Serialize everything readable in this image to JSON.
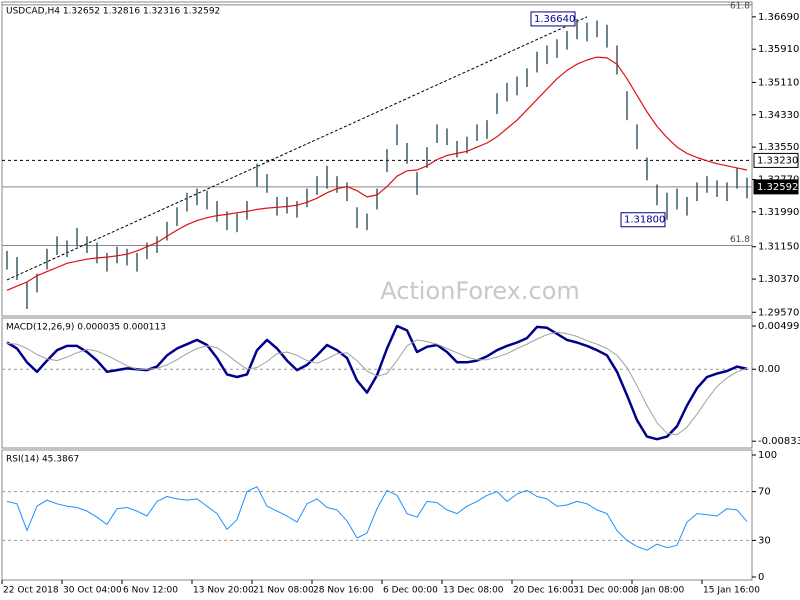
{
  "chart_data": [
    {
      "type": "ohlc",
      "title": "USDCAD,H4  1.32652 1.32816 1.32316 1.32592",
      "watermark": "ActionForex.com",
      "color": "#2f4f5f",
      "high": [
        1.3105,
        1.309,
        1.303,
        1.305,
        1.311,
        1.314,
        1.313,
        1.316,
        1.314,
        1.3125,
        1.31,
        1.3115,
        1.311,
        1.31,
        1.3125,
        1.314,
        1.3175,
        1.321,
        1.3245,
        1.3255,
        1.325,
        1.3225,
        1.32,
        1.3195,
        1.3225,
        1.3315,
        1.329,
        1.3235,
        1.3235,
        1.3225,
        1.3255,
        1.3285,
        1.331,
        1.3285,
        1.327,
        1.321,
        1.3195,
        1.3255,
        1.335,
        1.341,
        1.3365,
        1.3295,
        1.3355,
        1.341,
        1.34,
        1.337,
        1.338,
        1.341,
        1.342,
        1.3485,
        1.351,
        1.3525,
        1.3545,
        1.3585,
        1.36,
        1.3615,
        1.3635,
        1.3664,
        1.3655,
        1.366,
        1.365,
        1.36,
        1.349,
        1.341,
        1.333,
        1.3265,
        1.3245,
        1.3255,
        1.3235,
        1.327,
        1.3285,
        1.3275,
        1.327,
        1.3305,
        1.32816
      ],
      "low": [
        1.306,
        1.3035,
        1.2965,
        1.3005,
        1.306,
        1.3095,
        1.309,
        1.3115,
        1.31,
        1.3075,
        1.3055,
        1.3075,
        1.307,
        1.3055,
        1.3085,
        1.31,
        1.313,
        1.3165,
        1.32,
        1.3215,
        1.3205,
        1.3175,
        1.3155,
        1.315,
        1.318,
        1.326,
        1.3245,
        1.319,
        1.3195,
        1.3185,
        1.321,
        1.324,
        1.3255,
        1.3245,
        1.3225,
        1.316,
        1.3155,
        1.3205,
        1.3295,
        1.336,
        1.3315,
        1.324,
        1.3305,
        1.3365,
        1.336,
        1.333,
        1.334,
        1.337,
        1.3375,
        1.3435,
        1.3465,
        1.348,
        1.35,
        1.3535,
        1.3555,
        1.357,
        1.359,
        1.3615,
        1.361,
        1.362,
        1.3595,
        1.353,
        1.342,
        1.335,
        1.3275,
        1.3215,
        1.318,
        1.3205,
        1.319,
        1.3225,
        1.3245,
        1.3235,
        1.3225,
        1.3255,
        1.32316
      ],
      "series": [
        {
          "color": "#e01010",
          "values": [
            1.301,
            1.302,
            1.303,
            1.3045,
            1.3055,
            1.3065,
            1.3075,
            1.308,
            1.3085,
            1.3088,
            1.309,
            1.3093,
            1.3097,
            1.3105,
            1.3115,
            1.3125,
            1.314,
            1.3155,
            1.3168,
            1.3178,
            1.3185,
            1.319,
            1.3193,
            1.3197,
            1.32,
            1.3205,
            1.3208,
            1.321,
            1.3212,
            1.3215,
            1.3222,
            1.3232,
            1.3245,
            1.3255,
            1.326,
            1.325,
            1.3235,
            1.324,
            1.326,
            1.3285,
            1.3298,
            1.33,
            1.331,
            1.3325,
            1.3335,
            1.334,
            1.3345,
            1.3355,
            1.3365,
            1.338,
            1.34,
            1.342,
            1.3445,
            1.347,
            1.3495,
            1.352,
            1.354,
            1.3555,
            1.3565,
            1.3572,
            1.357,
            1.3555,
            1.352,
            1.348,
            1.344,
            1.3405,
            1.3378,
            1.3355,
            1.334,
            1.333,
            1.3322,
            1.3315,
            1.331,
            1.3305,
            1.33
          ]
        }
      ],
      "trend_line": {
        "x": [
          0,
          58
        ],
        "values": [
          1.3035,
          1.3669
        ],
        "color": "#000000"
      },
      "levels": [
        {
          "value": 1.3323,
          "label": "1.33230",
          "style": "dashed"
        },
        {
          "value": 1.32592,
          "label": "1.32592",
          "style": "solid"
        },
        {
          "value": 1.3118,
          "name": "61.8",
          "style": "solid"
        },
        {
          "value": 1.3698,
          "name": "61.8",
          "style": "solid"
        }
      ],
      "annotations": [
        {
          "text": "1.36640",
          "value": 1.3664,
          "x": 57
        },
        {
          "text": "1.31800",
          "value": 1.318,
          "x": 66
        }
      ],
      "ylim": [
        1.2948,
        1.37
      ],
      "yticks": [
        {
          "value": 1.2957,
          "label": "1.29570"
        },
        {
          "value": 1.3037,
          "label": "1.30370"
        },
        {
          "value": 1.3115,
          "label": "1.31150"
        },
        {
          "value": 1.3199,
          "label": "1.31990"
        },
        {
          "value": 1.3277,
          "label": "1.32770"
        },
        {
          "value": 1.3355,
          "label": "1.33550"
        },
        {
          "value": 1.3433,
          "label": "1.34330"
        },
        {
          "value": 1.3511,
          "label": "1.35110"
        },
        {
          "value": 1.3591,
          "label": "1.35910"
        },
        {
          "value": 1.3669,
          "label": "1.36690"
        }
      ]
    },
    {
      "type": "line",
      "title": "MACD(12,26,9) 0.000035 0.000113",
      "series": [
        {
          "color": "#00008b",
          "width": 2.5,
          "values": [
            0.0031,
            0.0024,
            0.0008,
            -0.0003,
            0.001,
            0.0022,
            0.0027,
            0.0027,
            0.002,
            0.001,
            -0.0003,
            -0.0001,
            0.0001,
            0.0,
            -0.0001,
            0.0003,
            0.0016,
            0.0024,
            0.0029,
            0.0034,
            0.0028,
            0.0013,
            -0.0006,
            -0.0009,
            -0.0006,
            0.0022,
            0.0034,
            0.0024,
            0.001,
            -0.0001,
            0.0005,
            0.0016,
            0.0028,
            0.0022,
            0.0013,
            -0.0013,
            -0.0027,
            -0.0007,
            0.0024,
            0.005,
            0.0045,
            0.002,
            0.0026,
            0.0028,
            0.002,
            0.0008,
            0.0008,
            0.001,
            0.0015,
            0.0022,
            0.0027,
            0.0031,
            0.0036,
            0.0049,
            0.0048,
            0.0041,
            0.0034,
            0.0031,
            0.0027,
            0.0022,
            0.0016,
            -0.0003,
            -0.003,
            -0.0059,
            -0.0078,
            -0.0081,
            -0.0078,
            -0.0066,
            -0.0042,
            -0.0022,
            -0.0009,
            -0.0005,
            -0.0002,
            0.0003,
            3.5e-05
          ]
        },
        {
          "color": "#a0a0a0",
          "width": 1,
          "values": [
            0.003,
            0.0029,
            0.0024,
            0.0017,
            0.0012,
            0.001,
            0.0014,
            0.0019,
            0.0023,
            0.0021,
            0.0016,
            0.001,
            0.0004,
            0.0,
            0.0,
            0.0001,
            0.0005,
            0.0011,
            0.0018,
            0.0024,
            0.0027,
            0.0025,
            0.0017,
            0.0008,
            0.0,
            0.0002,
            0.0009,
            0.0018,
            0.002,
            0.0016,
            0.001,
            0.0007,
            0.0012,
            0.0018,
            0.0019,
            0.001,
            -0.0002,
            -0.0008,
            -0.0005,
            0.001,
            0.0027,
            0.0034,
            0.0032,
            0.0029,
            0.0024,
            0.0019,
            0.0014,
            0.0011,
            0.0011,
            0.0014,
            0.0018,
            0.0024,
            0.0029,
            0.0035,
            0.004,
            0.0043,
            0.0041,
            0.0038,
            0.0033,
            0.0029,
            0.0024,
            0.0016,
            0.0002,
            -0.0019,
            -0.0042,
            -0.0062,
            -0.0074,
            -0.0076,
            -0.0067,
            -0.0052,
            -0.0035,
            -0.002,
            -0.001,
            -0.0003,
            0.000113
          ]
        }
      ],
      "levels": [
        {
          "value": 0,
          "style": "dashed"
        }
      ],
      "ylim": [
        -0.009,
        0.00593
      ],
      "yticks": [
        {
          "value": 0.004998,
          "label": "0.004998"
        },
        {
          "value": 0,
          "label": "0.00"
        },
        {
          "value": -0.00833,
          "label": "-0.00833"
        }
      ]
    },
    {
      "type": "line",
      "title": "RSI(14) 45.3867",
      "categories": [
        "22 Oct 2018",
        null,
        null,
        null,
        null,
        null,
        "30 Oct 04:00",
        null,
        null,
        null,
        null,
        null,
        "6 Nov 12:00",
        null,
        null,
        null,
        null,
        null,
        null,
        "13 Nov 20:00",
        null,
        null,
        null,
        null,
        null,
        "21 Nov 08:00",
        null,
        null,
        null,
        null,
        null,
        "28 Nov 16:00",
        null,
        null,
        null,
        null,
        null,
        null,
        "6 Dec 00:00",
        null,
        null,
        null,
        null,
        null,
        "13 Dec 08:00",
        null,
        null,
        null,
        null,
        null,
        null,
        "20 Dec 16:00",
        null,
        null,
        null,
        null,
        null,
        "31 Dec 00:00",
        null,
        null,
        null,
        null,
        null,
        "8 Jan 08:00",
        null,
        null,
        null,
        null,
        null,
        null,
        "15 Jan 16:00",
        null,
        null,
        null,
        null
      ],
      "series": [
        {
          "color": "#1e90ff",
          "width": 1,
          "values": [
            62,
            60,
            38,
            58,
            63,
            60,
            58,
            57,
            54,
            49,
            43,
            56,
            57,
            54,
            50,
            62,
            66,
            64,
            63,
            64,
            58,
            52,
            39,
            47,
            70,
            74,
            58,
            54,
            50,
            45,
            60,
            64,
            57,
            55,
            46,
            32,
            36,
            56,
            71,
            67,
            52,
            49,
            62,
            61,
            55,
            52,
            58,
            62,
            67,
            70,
            62,
            68,
            71,
            66,
            64,
            58,
            59,
            62,
            60,
            55,
            52,
            38,
            30,
            25,
            22,
            27,
            24,
            26,
            45,
            52,
            51,
            50,
            56,
            55,
            45.3867
          ]
        }
      ],
      "levels": [
        {
          "value": 30,
          "style": "dashed"
        },
        {
          "value": 70,
          "style": "dashed"
        }
      ],
      "ylim": [
        0,
        100
      ],
      "yticks": [
        0,
        30,
        70,
        100
      ]
    }
  ]
}
